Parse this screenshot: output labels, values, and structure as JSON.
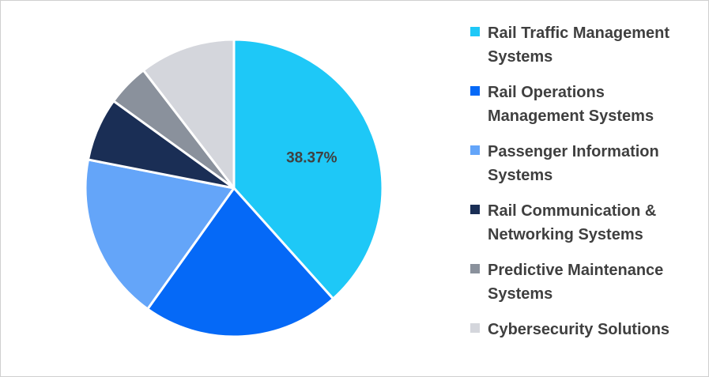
{
  "chart_data": {
    "type": "pie",
    "series": [
      {
        "categories": [
          "Rail Traffic Management\nSystems",
          "Rail Operations\nManagement Systems",
          "Passenger Information\nSystems",
          "Rail Communication &\nNetworking Systems",
          "Predictive Maintenance\nSystems",
          "Cybersecurity Solutions"
        ],
        "values": [
          38.37,
          21.5,
          18.2,
          6.9,
          4.6,
          10.43
        ],
        "colors": [
          "#1ec8f7",
          "#0569f7",
          "#64a5f9",
          "#1a2e55",
          "#8a919c",
          "#d4d6dc"
        ],
        "data_labels": [
          "38.37%",
          "",
          "",
          "",
          "",
          ""
        ]
      }
    ],
    "legend_position": "right",
    "start_angle_deg": 0,
    "direction": "clockwise"
  }
}
